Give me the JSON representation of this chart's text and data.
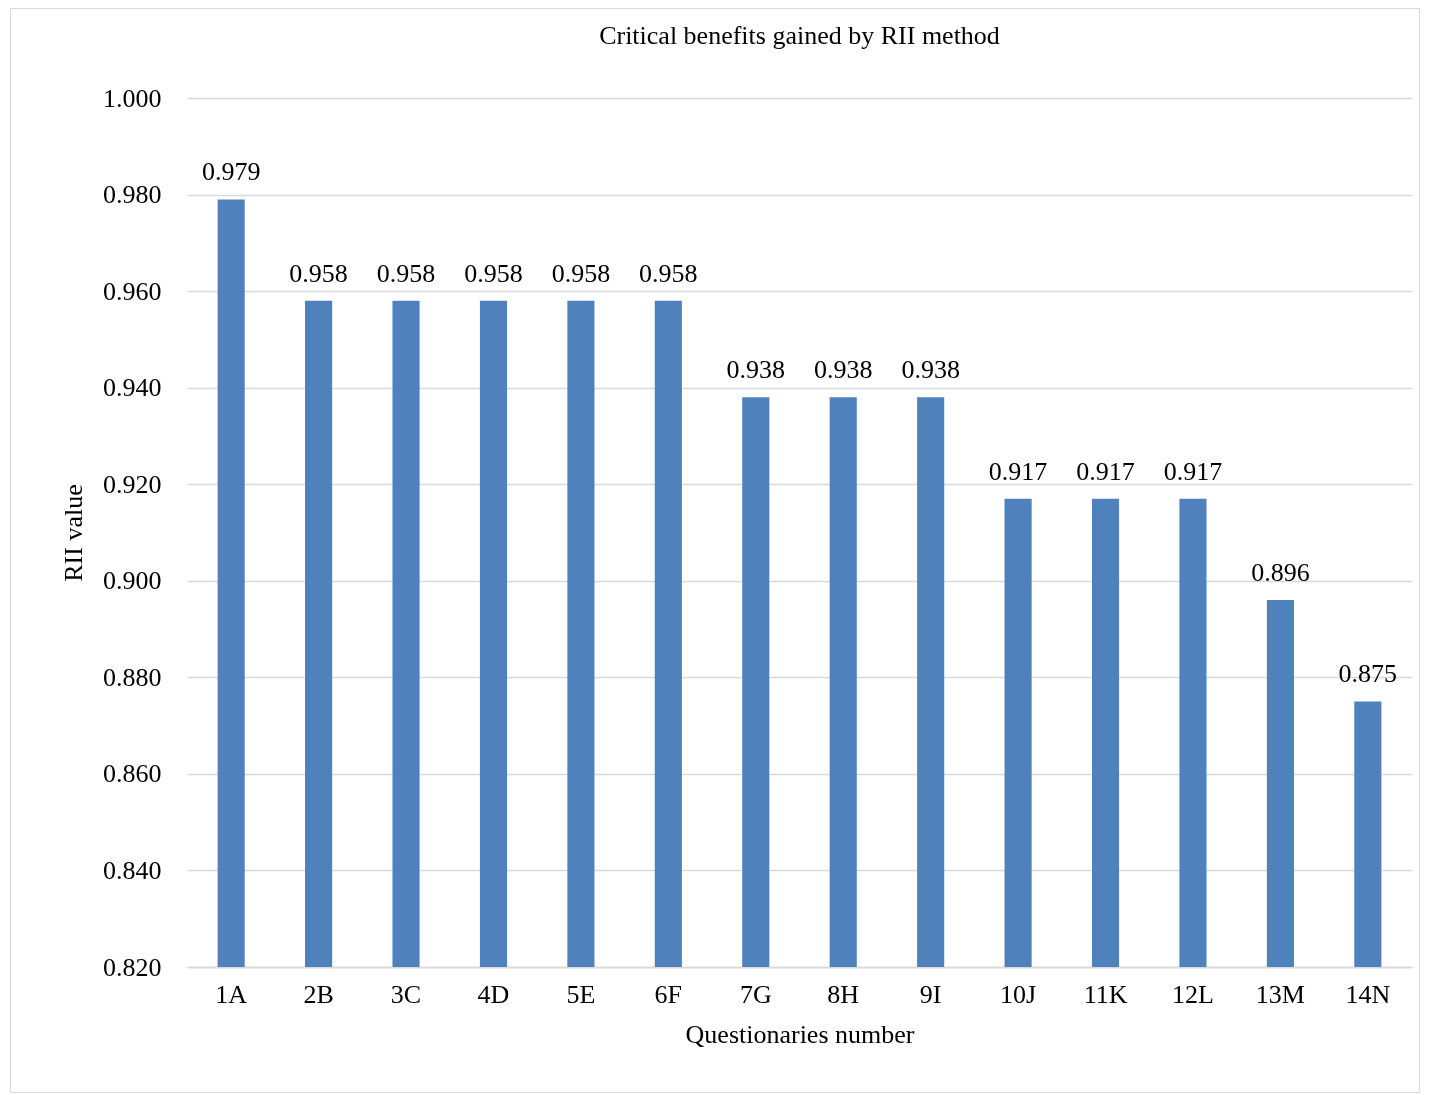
{
  "chart_data": {
    "type": "bar",
    "title": "Critical  benefits  gained  by RII  method",
    "xlabel": "Questionaries  number",
    "ylabel": "RII value",
    "categories": [
      "1A",
      "2B",
      "3C",
      "4D",
      "5E",
      "6F",
      "7G",
      "8H",
      "9I",
      "10J",
      "11K",
      "12L",
      "13M",
      "14N"
    ],
    "values": [
      0.979,
      0.958,
      0.958,
      0.958,
      0.958,
      0.958,
      0.938,
      0.938,
      0.938,
      0.917,
      0.917,
      0.917,
      0.896,
      0.875
    ],
    "color": "#4f81bd",
    "data_labels": true,
    "ylim": [
      0.82,
      1.0
    ],
    "yticks": [
      {
        "value": 0.82,
        "label": "0.820"
      },
      {
        "value": 0.84,
        "label": "0.840"
      },
      {
        "value": 0.86,
        "label": "0.860"
      },
      {
        "value": 0.88,
        "label": "0.880"
      },
      {
        "value": 0.9,
        "label": "0.900"
      },
      {
        "value": 0.92,
        "label": "0.920"
      },
      {
        "value": 0.94,
        "label": "0.940"
      },
      {
        "value": 0.96,
        "label": "0.960"
      },
      {
        "value": 0.98,
        "label": "0.980"
      },
      {
        "value": 1.0,
        "label": "1.000"
      }
    ],
    "grid": "y",
    "legend": false
  }
}
